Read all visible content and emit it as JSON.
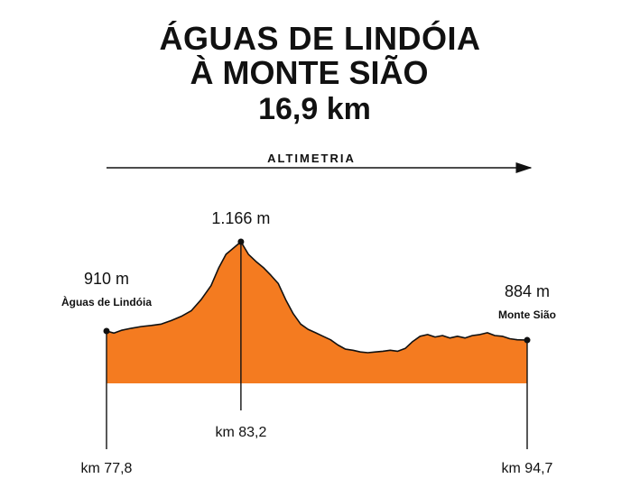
{
  "title": {
    "line1": "ÁGUAS DE LINDÓIA",
    "line2": "À MONTE SIÃO",
    "line3": "16,9 km"
  },
  "section_label": "ALTIMETRIA",
  "colors": {
    "fill": "#f47b20",
    "line": "#111111"
  },
  "chart_data": {
    "type": "area",
    "title": "ALTIMETRIA",
    "xlabel": "",
    "ylabel": "",
    "xlim": [
      77.8,
      94.7
    ],
    "ylim": [
      760,
      1190
    ],
    "x": [
      77.8,
      78.1,
      78.4,
      78.8,
      79.2,
      79.6,
      80.0,
      80.4,
      80.8,
      81.2,
      81.6,
      82.0,
      82.3,
      82.6,
      82.9,
      83.2,
      83.5,
      83.8,
      84.1,
      84.4,
      84.7,
      85.0,
      85.3,
      85.6,
      85.9,
      86.2,
      86.5,
      86.8,
      87.1,
      87.4,
      87.7,
      88.0,
      88.3,
      88.6,
      88.9,
      89.2,
      89.5,
      89.8,
      90.1,
      90.4,
      90.7,
      91.0,
      91.3,
      91.6,
      91.9,
      92.2,
      92.5,
      92.8,
      93.1,
      93.4,
      93.7,
      94.0,
      94.3,
      94.7
    ],
    "series": [
      {
        "values": [
          910,
          904,
          912,
          918,
          923,
          926,
          930,
          940,
          952,
          968,
          1000,
          1040,
          1090,
          1130,
          1148,
          1166,
          1130,
          1110,
          1092,
          1070,
          1046,
          1000,
          960,
          930,
          915,
          905,
          895,
          885,
          870,
          858,
          855,
          850,
          848,
          850,
          852,
          855,
          852,
          860,
          880,
          895,
          900,
          893,
          897,
          890,
          895,
          890,
          897,
          900,
          905,
          897,
          895,
          888,
          885,
          884
        ]
      }
    ],
    "annotations": [
      {
        "id": "start",
        "x": 77.8,
        "y": 910,
        "label": "910 m",
        "sublabel": "Àguas de Lindóia",
        "km_label": "km 77,8"
      },
      {
        "id": "peak",
        "x": 83.2,
        "y": 1166,
        "label": "1.166 m",
        "km_label": "km 83,2"
      },
      {
        "id": "end",
        "x": 94.7,
        "y": 884,
        "label": "884 m",
        "sublabel": "Monte Sião",
        "km_label": "km 94,7"
      }
    ],
    "grid": false,
    "legend": "none"
  }
}
